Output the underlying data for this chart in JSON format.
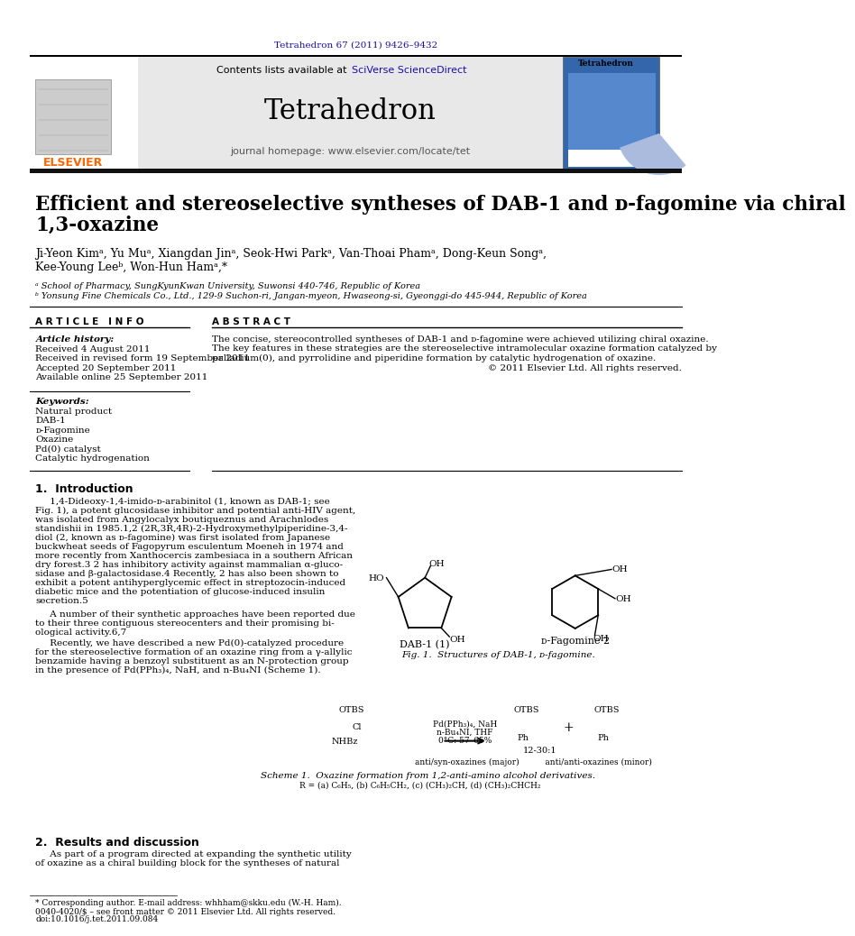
{
  "bg_color": "#ffffff",
  "top_citation": "Tetrahedron 67 (2011) 9426–9432",
  "citation_color": "#1a0dab",
  "journal_header_bg": "#e8e8e8",
  "journal_title": "Tetrahedron",
  "contents_line": "Contents lists available at SciVerse ScienceDirect",
  "journal_homepage": "journal homepage: www.elsevier.com/locate/tet",
  "elsevier_color": "#ff6600",
  "paper_title_line1": "Efficient and stereoselective syntheses of DAB-1 and ᴅ-fagomine via chiral",
  "paper_title_line2": "1,3-oxazine",
  "authors_line1": "Ji-Yeon Kimᵃ, Yu Muᵃ, Xiangdan Jinᵃ, Seok-Hwi Parkᵃ, Van-Thoai Phamᵃ, Dong-Keun Songᵃ,",
  "authors_line2": "Kee-Young Leeᵇ, Won-Hun Hamᵃ,*",
  "affil_a": "ᵃ School of Pharmacy, SungKyunKwan University, Suwonsi 440-746, Republic of Korea",
  "affil_b": "ᵇ Yonsung Fine Chemicals Co., Ltd., 129-9 Suchon-ri, Jangan-myeon, Hwaseong-si, Gyeonggi-do 445-944, Republic of Korea",
  "article_info_header": "A R T I C L E   I N F O",
  "abstract_header": "A B S T R A C T",
  "article_history_label": "Article history:",
  "received_1": "Received 4 August 2011",
  "received_2": "Received in revised form 19 September 2011",
  "accepted": "Accepted 20 September 2011",
  "available": "Available online 25 September 2011",
  "keywords_label": "Keywords:",
  "keywords": [
    "Natural product",
    "DAB-1",
    "ᴅ-Fagomine",
    "Oxazine",
    "Pd(0) catalyst",
    "Catalytic hydrogenation"
  ],
  "abstract_lines": [
    "The concise, stereocontrolled syntheses of DAB-1 and ᴅ-fagomine were achieved utilizing chiral oxazine.",
    "The key features in these strategies are the stereoselective intramolecular oxazine formation catalyzed by",
    "palladium(0), and pyrrolidine and piperidine formation by catalytic hydrogenation of oxazine."
  ],
  "copyright": "© 2011 Elsevier Ltd. All rights reserved.",
  "intro_header": "1.  Introduction",
  "intro_lines": [
    "     1,4-Dideoxy-1,4-imido-ᴅ-arabinitol (1, known as DAB-1; see",
    "Fig. 1), a potent glucosidase inhibitor and potential anti-HIV agent,",
    "was isolated from Angylocalyx boutiqueznus and Arachnlodes",
    "standishii in 1985.1,2 (2R,3R,4R)-2-Hydroxymethylpiperidine-3,4-",
    "diol (2, known as ᴅ-fagomine) was first isolated from Japanese",
    "buckwheat seeds of Fagopyrum esculentum Moeneh in 1974 and",
    "more recently from Xanthocercis zambesiaca in a southern African",
    "dry forest.3 2 has inhibitory activity against mammalian α-gluco-",
    "sidase and β-galactosidase.4 Recently, 2 has also been shown to",
    "exhibit a potent antihyperglycemic effect in streptozocin-induced",
    "diabetic mice and the potentiation of glucose-induced insulin",
    "secretion.5"
  ],
  "para2_lines": [
    "     A number of their synthetic approaches have been reported due",
    "to their three contiguous stereocenters and their promising bi-",
    "ological activity.6,7"
  ],
  "para3_lines": [
    "     Recently, we have described a new Pd(0)-catalyzed procedure",
    "for the stereoselective formation of an oxazine ring from a γ-allylic",
    "benzamide having a benzoyl substituent as an N-protection group",
    "in the presence of Pd(PPh₃)₄, NaH, and n-Bu₄NI (Scheme 1)."
  ],
  "section2_header": "2.  Results and discussion",
  "section2_lines": [
    "     As part of a program directed at expanding the synthetic utility",
    "of oxazine as a chiral building block for the syntheses of natural"
  ],
  "footnote_corresponding": "* Corresponding author. E-mail address: whhham@skku.edu (W.-H. Ham).",
  "footnote_issn": "0040-4020/$ – see front matter © 2011 Elsevier Ltd. All rights reserved.",
  "footnote_doi": "doi:10.1016/j.tet.2011.09.084",
  "fig1_caption": "Fig. 1.  Structures of DAB-1, ᴅ-fagomine.",
  "scheme1_caption": "Scheme 1.  Oxazine formation from 1,2-anti-amino alcohol derivatives.",
  "scheme1_R_label": "R = (a) C₆H₅, (b) C₆H₅CH₂, (c) (CH₃)₂CH, (d) (CH₃)₂CHCH₂"
}
